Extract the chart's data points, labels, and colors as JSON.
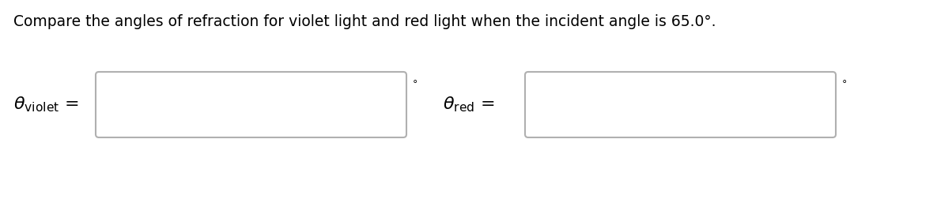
{
  "title": "Compare the angles of refraction for violet light and red light when the incident angle is 65.0°.",
  "title_fontsize": 13.5,
  "label_violet": "$\\theta_{\\mathrm{violet}}$",
  "label_red": "$\\theta_{\\mathrm{red}}$",
  "equals": " =",
  "degree_symbol": "°",
  "box_color": "#b0b0b0",
  "box_facecolor": "#ffffff",
  "background_color": "#ffffff",
  "label_fontsize": 16,
  "deg_fontsize": 9,
  "figwidth": 11.85,
  "figheight": 2.76,
  "dpi": 100
}
